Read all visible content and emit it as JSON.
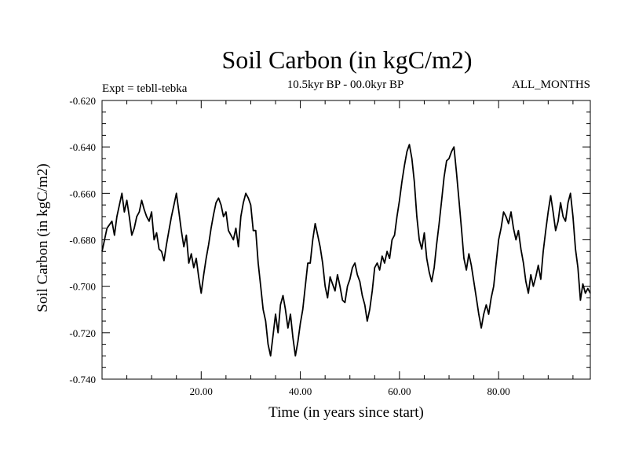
{
  "chart_data": {
    "type": "line",
    "title": "Soil Carbon (in kgC/m2)",
    "subtitle_left": "Expt = tebll-tebka",
    "subtitle_center": "10.5kyr BP - 00.0kyr BP",
    "subtitle_right": "ALL_MONTHS",
    "xlabel": "Time (in years since start)",
    "ylabel": "Soil Carbon (in kgC/m2)",
    "xlim": [
      0,
      98.5
    ],
    "ylim": [
      -0.74,
      -0.62
    ],
    "xticks": [
      20,
      40,
      60,
      80
    ],
    "xtick_labels": [
      "20.00",
      "40.00",
      "60.00",
      "80.00"
    ],
    "yticks": [
      -0.74,
      -0.72,
      -0.7,
      -0.68,
      -0.66,
      -0.64,
      -0.62
    ],
    "ytick_labels": [
      "-0.740",
      "-0.720",
      "-0.700",
      "-0.680",
      "-0.660",
      "-0.640",
      "-0.620"
    ],
    "grid": false,
    "series": [
      {
        "name": "Soil Carbon",
        "color": "#000000",
        "x": [
          0.0,
          1.0,
          2.0,
          2.5,
          3.0,
          3.5,
          4.0,
          4.5,
          5.0,
          5.5,
          6.0,
          6.5,
          7.0,
          7.5,
          8.0,
          8.5,
          9.0,
          9.5,
          10.0,
          10.5,
          11.0,
          11.5,
          12.0,
          12.5,
          13.0,
          13.5,
          14.0,
          14.5,
          15.0,
          15.5,
          16.0,
          16.5,
          17.0,
          17.5,
          18.0,
          18.5,
          19.0,
          19.5,
          20.0,
          20.5,
          21.0,
          21.5,
          22.0,
          22.5,
          23.0,
          23.5,
          24.0,
          24.5,
          25.0,
          25.5,
          26.0,
          26.5,
          27.0,
          27.5,
          28.0,
          28.5,
          29.0,
          29.5,
          30.0,
          30.5,
          31.0,
          31.5,
          32.0,
          32.5,
          33.0,
          33.5,
          34.0,
          34.5,
          35.0,
          35.5,
          36.0,
          36.5,
          37.0,
          37.5,
          38.0,
          38.5,
          39.0,
          39.5,
          40.0,
          40.5,
          41.0,
          41.5,
          42.0,
          42.5,
          43.0,
          43.5,
          44.0,
          44.5,
          45.0,
          45.5,
          46.0,
          46.5,
          47.0,
          47.5,
          48.0,
          48.5,
          49.0,
          49.5,
          50.0,
          50.5,
          51.0,
          51.5,
          52.0,
          52.5,
          53.0,
          53.5,
          54.0,
          54.5,
          55.0,
          55.5,
          56.0,
          56.5,
          57.0,
          57.5,
          58.0,
          58.5,
          59.0,
          59.5,
          60.0,
          60.5,
          61.0,
          61.5,
          62.0,
          62.5,
          63.0,
          63.5,
          64.0,
          64.5,
          65.0,
          65.5,
          66.0,
          66.5,
          67.0,
          67.5,
          68.0,
          68.5,
          69.0,
          69.5,
          70.0,
          70.5,
          71.0,
          71.5,
          72.0,
          72.5,
          73.0,
          73.5,
          74.0,
          74.5,
          75.0,
          75.5,
          76.0,
          76.5,
          77.0,
          77.5,
          78.0,
          78.5,
          79.0,
          79.5,
          80.0,
          80.5,
          81.0,
          81.5,
          82.0,
          82.5,
          83.0,
          83.5,
          84.0,
          84.5,
          85.0,
          85.5,
          86.0,
          86.5,
          87.0,
          87.5,
          88.0,
          88.5,
          89.0,
          89.5,
          90.0,
          90.5,
          91.0,
          91.5,
          92.0,
          92.5,
          93.0,
          93.5,
          94.0,
          94.5,
          95.0,
          95.5,
          96.0,
          96.5,
          97.0,
          97.5,
          98.0,
          98.5
        ],
        "values": [
          -0.685,
          -0.675,
          -0.672,
          -0.678,
          -0.67,
          -0.665,
          -0.66,
          -0.668,
          -0.663,
          -0.67,
          -0.678,
          -0.675,
          -0.67,
          -0.668,
          -0.663,
          -0.667,
          -0.67,
          -0.672,
          -0.668,
          -0.68,
          -0.677,
          -0.684,
          -0.685,
          -0.689,
          -0.682,
          -0.676,
          -0.67,
          -0.665,
          -0.66,
          -0.668,
          -0.676,
          -0.683,
          -0.678,
          -0.69,
          -0.686,
          -0.692,
          -0.688,
          -0.696,
          -0.703,
          -0.695,
          -0.688,
          -0.682,
          -0.675,
          -0.669,
          -0.664,
          -0.662,
          -0.665,
          -0.67,
          -0.668,
          -0.676,
          -0.678,
          -0.68,
          -0.675,
          -0.683,
          -0.67,
          -0.664,
          -0.66,
          -0.662,
          -0.665,
          -0.676,
          -0.676,
          -0.69,
          -0.7,
          -0.71,
          -0.715,
          -0.725,
          -0.73,
          -0.721,
          -0.712,
          -0.72,
          -0.708,
          -0.704,
          -0.71,
          -0.718,
          -0.712,
          -0.722,
          -0.73,
          -0.724,
          -0.716,
          -0.71,
          -0.7,
          -0.69,
          -0.69,
          -0.68,
          -0.673,
          -0.678,
          -0.683,
          -0.69,
          -0.7,
          -0.705,
          -0.696,
          -0.699,
          -0.702,
          -0.695,
          -0.7,
          -0.706,
          -0.707,
          -0.7,
          -0.697,
          -0.692,
          -0.69,
          -0.695,
          -0.698,
          -0.704,
          -0.708,
          -0.715,
          -0.71,
          -0.702,
          -0.692,
          -0.69,
          -0.693,
          -0.687,
          -0.69,
          -0.685,
          -0.688,
          -0.68,
          -0.678,
          -0.67,
          -0.663,
          -0.655,
          -0.648,
          -0.642,
          -0.639,
          -0.645,
          -0.655,
          -0.67,
          -0.68,
          -0.684,
          -0.677,
          -0.688,
          -0.694,
          -0.698,
          -0.692,
          -0.682,
          -0.673,
          -0.663,
          -0.653,
          -0.646,
          -0.645,
          -0.642,
          -0.64,
          -0.651,
          -0.663,
          -0.675,
          -0.688,
          -0.693,
          -0.686,
          -0.691,
          -0.698,
          -0.705,
          -0.712,
          -0.718,
          -0.712,
          -0.708,
          -0.712,
          -0.705,
          -0.7,
          -0.69,
          -0.68,
          -0.675,
          -0.668,
          -0.67,
          -0.673,
          -0.668,
          -0.675,
          -0.68,
          -0.676,
          -0.684,
          -0.69,
          -0.698,
          -0.703,
          -0.695,
          -0.7,
          -0.696,
          -0.691,
          -0.697,
          -0.685,
          -0.676,
          -0.668,
          -0.661,
          -0.668,
          -0.676,
          -0.672,
          -0.664,
          -0.67,
          -0.672,
          -0.664,
          -0.66,
          -0.67,
          -0.684,
          -0.692,
          -0.706,
          -0.699,
          -0.703,
          -0.701,
          -0.703
        ]
      }
    ]
  }
}
